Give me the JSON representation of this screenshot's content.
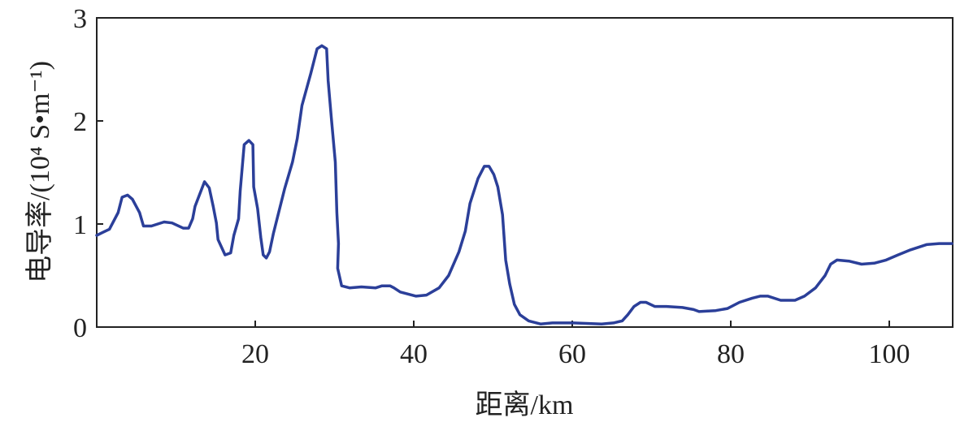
{
  "chart_data": {
    "type": "line",
    "xlabel": "距离/km",
    "ylabel": "电导率/(10⁴ S•m⁻¹)",
    "x": [
      0,
      1.6,
      2.7,
      3.2,
      3.9,
      4.5,
      5.4,
      5.9,
      6.9,
      8.5,
      9.5,
      10.9,
      11.6,
      12.1,
      12.4,
      13.6,
      14.2,
      14.7,
      15.1,
      15.3,
      16.2,
      16.9,
      17.3,
      17.9,
      18.1,
      18.6,
      19.2,
      19.7,
      19.8,
      20.3,
      20.7,
      21.0,
      21.4,
      21.8,
      22.3,
      23.7,
      24.7,
      25.3,
      25.9,
      27.0,
      27.8,
      28.4,
      29.0,
      29.2,
      29.6,
      30.1,
      30.3,
      30.5,
      30.4,
      30.9,
      31.9,
      33.4,
      35.2,
      36.0,
      37.0,
      37.5,
      38.3,
      40.3,
      41.6,
      43.2,
      44.4,
      45.7,
      46.5,
      47.1,
      48.1,
      48.9,
      49.5,
      50.1,
      50.6,
      51.2,
      51.6,
      52.1,
      52.7,
      53.4,
      54.5,
      56.0,
      57.5,
      59.1,
      60.1,
      63.7,
      65.2,
      66.3,
      67.0,
      67.8,
      68.6,
      69.3,
      70.4,
      71.9,
      73.9,
      75.3,
      76.0,
      78.1,
      79.6,
      81.1,
      82.7,
      83.7,
      84.7,
      86.3,
      88.1,
      89.3,
      90.7,
      91.9,
      92.6,
      93.4,
      94.9,
      96.5,
      98.1,
      99.6,
      101.1,
      102.7,
      104.7,
      106.3,
      107.9
    ],
    "values": [
      0.89,
      0.95,
      1.11,
      1.26,
      1.28,
      1.24,
      1.11,
      0.98,
      0.98,
      1.02,
      1.01,
      0.96,
      0.96,
      1.05,
      1.17,
      1.41,
      1.35,
      1.17,
      1.01,
      0.85,
      0.7,
      0.72,
      0.89,
      1.05,
      1.32,
      1.77,
      1.81,
      1.77,
      1.36,
      1.15,
      0.87,
      0.7,
      0.67,
      0.73,
      0.91,
      1.34,
      1.6,
      1.83,
      2.15,
      2.46,
      2.7,
      2.73,
      2.7,
      2.39,
      2.03,
      1.6,
      1.11,
      0.81,
      0.57,
      0.4,
      0.38,
      0.39,
      0.38,
      0.4,
      0.4,
      0.38,
      0.34,
      0.3,
      0.31,
      0.38,
      0.5,
      0.73,
      0.93,
      1.2,
      1.44,
      1.56,
      1.56,
      1.48,
      1.36,
      1.09,
      0.65,
      0.42,
      0.22,
      0.12,
      0.06,
      0.03,
      0.04,
      0.04,
      0.04,
      0.03,
      0.04,
      0.06,
      0.12,
      0.2,
      0.24,
      0.24,
      0.2,
      0.2,
      0.19,
      0.17,
      0.15,
      0.16,
      0.18,
      0.24,
      0.28,
      0.3,
      0.3,
      0.26,
      0.26,
      0.3,
      0.38,
      0.5,
      0.61,
      0.65,
      0.64,
      0.61,
      0.62,
      0.65,
      0.7,
      0.75,
      0.8,
      0.81,
      0.81
    ],
    "color": "#2b3f99",
    "xlim": [
      0,
      108
    ],
    "xticks": [
      20,
      40,
      60,
      80,
      100
    ],
    "ylim": [
      0,
      3
    ],
    "yticks": [
      0,
      1,
      2,
      3
    ]
  }
}
